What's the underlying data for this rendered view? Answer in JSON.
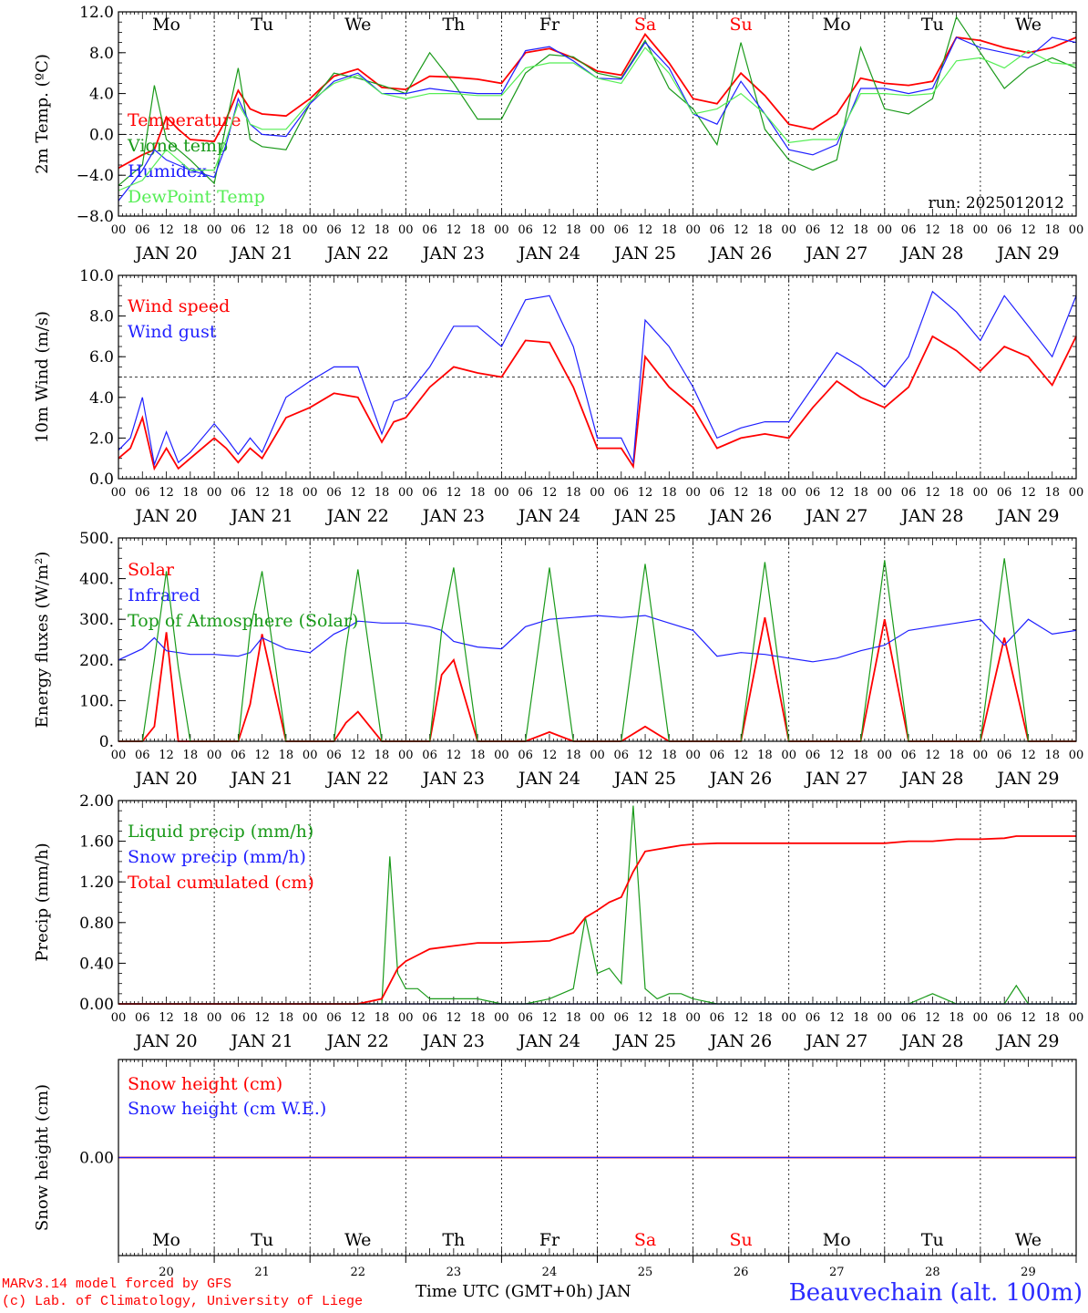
{
  "footer": {
    "model": "MARv3.14 model forced by GFS",
    "lab": "(c) Lab. of Climatology, University of Liege",
    "axis_title": "Time UTC (GMT+0h)",
    "month": "JAN",
    "station": "Beauvechain (alt. 100m)"
  },
  "run_label": "run: 2025012012",
  "colors": {
    "red": "#ff0000",
    "green": "#1a9a1a",
    "blue": "#1f1fff",
    "lightgreen": "#55ee55",
    "weekend": "#ff0000"
  },
  "hour_ticks": [
    "00",
    "06",
    "12",
    "18"
  ],
  "last_hour_tick": "00",
  "date_labels": [
    "JAN 20",
    "JAN 21",
    "JAN 22",
    "JAN 23",
    "JAN 24",
    "JAN 25",
    "JAN 26",
    "JAN 27",
    "JAN 28",
    "JAN 29"
  ],
  "bottom_days": [
    "20",
    "21",
    "22",
    "23",
    "24",
    "25",
    "26",
    "27",
    "28",
    "29"
  ],
  "weekdays": [
    "Mo",
    "Tu",
    "We",
    "Th",
    "Fr",
    "Sa",
    "Su",
    "Mo",
    "Tu",
    "We"
  ],
  "weekend_days": [
    "Sa",
    "Su"
  ],
  "chart_data": [
    {
      "type": "line",
      "ylabel": "2m Temp. (ºC)",
      "ylim": [
        -8,
        12
      ],
      "yticks": [
        "12.0",
        "8.0",
        "4.0",
        "0.0",
        "−4.0",
        "−8.0"
      ],
      "ref_line": 0,
      "x_unit": "hours since JAN 20 00 UTC",
      "x": [
        0,
        6,
        9,
        12,
        15,
        18,
        24,
        27,
        30,
        33,
        36,
        42,
        48,
        54,
        60,
        66,
        72,
        78,
        84,
        90,
        96,
        102,
        108,
        114,
        120,
        126,
        132,
        138,
        144,
        150,
        156,
        162,
        168,
        174,
        180,
        186,
        192,
        198,
        204,
        210,
        216,
        222,
        228,
        234,
        240
      ],
      "series": [
        {
          "name": "Temperature",
          "color": "red",
          "values": [
            -3.3,
            -2.0,
            -1.5,
            1.7,
            0.5,
            -0.5,
            -0.7,
            1.5,
            4.3,
            2.5,
            2.0,
            1.8,
            3.5,
            5.7,
            6.4,
            4.6,
            4.4,
            5.7,
            5.6,
            5.4,
            5.0,
            8.0,
            8.4,
            7.5,
            6.2,
            5.8,
            9.8,
            7.0,
            3.5,
            3.0,
            6.0,
            3.8,
            1.0,
            0.5,
            2.0,
            5.5,
            5.0,
            4.8,
            5.2,
            9.5,
            9.2,
            8.5,
            8.0,
            8.5,
            9.5
          ]
        },
        {
          "name": "Vigne temp",
          "color": "green",
          "values": [
            -5.0,
            -3.0,
            4.8,
            -0.5,
            -1.5,
            -2.5,
            -4.8,
            1.0,
            6.5,
            -0.5,
            -1.2,
            -1.5,
            3.0,
            6.0,
            5.5,
            4.8,
            4.0,
            8.0,
            5.0,
            1.5,
            1.5,
            6.0,
            7.8,
            7.6,
            6.0,
            5.5,
            9.2,
            4.5,
            2.5,
            -1.0,
            9.0,
            0.5,
            -2.5,
            -3.5,
            -2.5,
            8.5,
            2.5,
            2.0,
            3.5,
            11.5,
            8.0,
            4.5,
            6.5,
            7.5,
            6.5
          ]
        },
        {
          "name": "Humidex",
          "color": "blue",
          "values": [
            -6.5,
            -3.5,
            -1.5,
            -2.5,
            -3.0,
            -3.5,
            -4.2,
            -1.0,
            3.5,
            1.0,
            0.0,
            -0.2,
            3.0,
            5.2,
            6.0,
            4.0,
            4.0,
            4.5,
            4.2,
            4.0,
            4.0,
            8.2,
            8.6,
            7.2,
            5.5,
            5.4,
            9.0,
            6.5,
            2.0,
            1.0,
            5.2,
            2.0,
            -1.5,
            -2.0,
            -1.0,
            4.5,
            4.5,
            4.0,
            4.5,
            9.5,
            8.5,
            8.0,
            7.5,
            9.5,
            9.0
          ]
        },
        {
          "name": "DewPoint Temp",
          "color": "lightgreen",
          "values": [
            -5.5,
            -4.5,
            -3.0,
            -1.5,
            -2.5,
            -3.5,
            -3.5,
            -0.5,
            3.0,
            1.0,
            0.5,
            0.5,
            3.2,
            5.0,
            5.8,
            4.0,
            3.5,
            4.0,
            4.0,
            3.8,
            3.8,
            6.5,
            7.0,
            7.0,
            5.5,
            5.0,
            8.5,
            6.0,
            2.0,
            2.5,
            4.0,
            2.0,
            -0.8,
            -0.5,
            -0.5,
            4.0,
            4.0,
            3.8,
            4.0,
            7.2,
            7.5,
            6.5,
            8.2,
            7.0,
            6.8
          ]
        }
      ]
    },
    {
      "type": "line",
      "ylabel": "10m Wind (m/s)",
      "ylim": [
        0,
        10
      ],
      "yticks": [
        "10.0",
        "8.0",
        "6.0",
        "4.0",
        "2.0",
        "0.0"
      ],
      "ref_line": 5,
      "x_unit": "hours since JAN 20 00 UTC",
      "x": [
        0,
        3,
        6,
        9,
        12,
        15,
        18,
        24,
        27,
        30,
        33,
        36,
        42,
        48,
        54,
        60,
        66,
        69,
        72,
        78,
        84,
        90,
        96,
        102,
        108,
        114,
        120,
        126,
        129,
        132,
        138,
        144,
        150,
        156,
        162,
        168,
        174,
        180,
        186,
        192,
        198,
        204,
        210,
        216,
        222,
        228,
        234,
        240
      ],
      "series": [
        {
          "name": "Wind speed",
          "color": "red",
          "values": [
            1.0,
            1.5,
            3.0,
            0.5,
            1.5,
            0.5,
            1.0,
            2.0,
            1.5,
            0.8,
            1.5,
            1.0,
            3.0,
            3.5,
            4.2,
            4.0,
            1.8,
            2.8,
            3.0,
            4.5,
            5.5,
            5.2,
            5.0,
            6.8,
            6.7,
            4.5,
            1.5,
            1.5,
            0.6,
            6.0,
            4.5,
            3.5,
            1.5,
            2.0,
            2.2,
            2.0,
            3.5,
            4.8,
            4.0,
            3.5,
            4.5,
            7.0,
            6.3,
            5.3,
            6.5,
            6.0,
            4.6,
            7.0
          ]
        },
        {
          "name": "Wind gust",
          "color": "blue",
          "values": [
            1.4,
            2.0,
            4.0,
            0.7,
            2.3,
            0.8,
            1.3,
            2.7,
            2.0,
            1.2,
            2.0,
            1.3,
            4.0,
            4.8,
            5.5,
            5.5,
            2.2,
            3.8,
            4.0,
            5.5,
            7.5,
            7.5,
            6.5,
            8.8,
            9.0,
            6.5,
            2.0,
            2.0,
            0.8,
            7.8,
            6.5,
            4.5,
            2.0,
            2.5,
            2.8,
            2.8,
            4.5,
            6.2,
            5.5,
            4.5,
            6.0,
            9.2,
            8.2,
            6.8,
            9.0,
            7.5,
            6.0,
            9.0
          ]
        }
      ]
    },
    {
      "type": "line",
      "ylabel": "Energy fluxes (W/m²)",
      "ylim": [
        0,
        550
      ],
      "yticks": [
        "500.",
        "400.",
        "300.",
        "200.",
        "100.",
        "0."
      ],
      "x_unit": "hours since JAN 20 00 UTC",
      "x": [
        0,
        6,
        9,
        12,
        15,
        18,
        24,
        30,
        33,
        36,
        42,
        48,
        54,
        57,
        60,
        66,
        72,
        78,
        81,
        84,
        90,
        96,
        102,
        108,
        114,
        120,
        126,
        132,
        138,
        144,
        150,
        156,
        162,
        168,
        174,
        180,
        186,
        192,
        198,
        204,
        210,
        216,
        222,
        228,
        234,
        240
      ],
      "series": [
        {
          "name": "Solar",
          "color": "red",
          "values": [
            0,
            0,
            40,
            295,
            0,
            0,
            0,
            0,
            100,
            290,
            0,
            0,
            0,
            50,
            80,
            0,
            0,
            0,
            180,
            220,
            0,
            0,
            0,
            25,
            0,
            0,
            0,
            40,
            0,
            0,
            0,
            0,
            335,
            0,
            0,
            0,
            0,
            330,
            0,
            0,
            0,
            0,
            280,
            0,
            0,
            0
          ]
        },
        {
          "name": "Infrared",
          "color": "blue",
          "values": [
            220,
            250,
            280,
            245,
            240,
            235,
            235,
            230,
            240,
            280,
            250,
            240,
            290,
            305,
            325,
            320,
            320,
            310,
            300,
            270,
            255,
            250,
            310,
            330,
            335,
            340,
            335,
            340,
            320,
            300,
            230,
            240,
            235,
            225,
            215,
            225,
            245,
            260,
            300,
            310,
            320,
            330,
            260,
            330,
            290,
            300
          ]
        },
        {
          "name": "Top of Atmosphere (Solar)",
          "color": "green",
          "values": [
            0,
            0,
            220,
            460,
            200,
            0,
            0,
            0,
            300,
            460,
            0,
            0,
            0,
            250,
            465,
            0,
            0,
            0,
            300,
            470,
            0,
            0,
            0,
            470,
            0,
            0,
            0,
            480,
            0,
            0,
            0,
            0,
            485,
            0,
            0,
            0,
            0,
            490,
            0,
            0,
            0,
            0,
            495,
            0,
            0,
            0
          ]
        }
      ]
    },
    {
      "type": "line",
      "ylabel": "Precip (mm/h)",
      "ylim": [
        0,
        2.0
      ],
      "yticks": [
        "2.00",
        "1.60",
        "1.20",
        "0.80",
        "0.40",
        "0.00"
      ],
      "x_unit": "hours since JAN 20 00 UTC",
      "x": [
        0,
        48,
        60,
        66,
        68,
        70,
        72,
        75,
        78,
        84,
        90,
        96,
        102,
        108,
        114,
        117,
        120,
        123,
        126,
        129,
        132,
        135,
        138,
        141,
        144,
        150,
        180,
        192,
        198,
        204,
        210,
        216,
        222,
        225,
        228,
        240
      ],
      "series": [
        {
          "name": "Liquid precip (mm/h)",
          "color": "green",
          "values": [
            0,
            0,
            0,
            0,
            1.45,
            0.3,
            0.15,
            0.15,
            0.05,
            0.05,
            0.05,
            0,
            0,
            0.05,
            0.15,
            0.85,
            0.3,
            0.35,
            0.2,
            1.95,
            0.15,
            0.05,
            0.1,
            0.1,
            0.05,
            0,
            0,
            0,
            0,
            0.1,
            0,
            0,
            0,
            0.18,
            0,
            0
          ]
        },
        {
          "name": "Snow precip (mm/h)",
          "color": "blue",
          "values": [
            0,
            0,
            0,
            0,
            0,
            0,
            0,
            0,
            0,
            0,
            0,
            0,
            0,
            0,
            0,
            0,
            0,
            0,
            0,
            0,
            0,
            0,
            0,
            0,
            0,
            0,
            0,
            0,
            0,
            0,
            0,
            0,
            0,
            0,
            0,
            0
          ]
        },
        {
          "name": "Total cumulated (cm)",
          "color": "red",
          "values": [
            0,
            0,
            0,
            0.05,
            0.2,
            0.35,
            0.42,
            0.48,
            0.54,
            0.57,
            0.6,
            0.6,
            0.61,
            0.62,
            0.7,
            0.85,
            0.92,
            1.0,
            1.05,
            1.3,
            1.5,
            1.52,
            1.54,
            1.56,
            1.57,
            1.58,
            1.58,
            1.58,
            1.6,
            1.6,
            1.62,
            1.62,
            1.63,
            1.65,
            1.65,
            1.65
          ]
        }
      ]
    },
    {
      "type": "line",
      "ylabel": "Snow height (cm)",
      "yticks": [
        "0.00"
      ],
      "x_unit": "hours since JAN 20 00 UTC",
      "x": [
        0,
        240
      ],
      "series": [
        {
          "name": "Snow height (cm)",
          "color": "red",
          "values": [
            0,
            0
          ]
        },
        {
          "name": "Snow height (cm W.E.)",
          "color": "blue",
          "values": [
            0,
            0
          ]
        }
      ]
    }
  ]
}
